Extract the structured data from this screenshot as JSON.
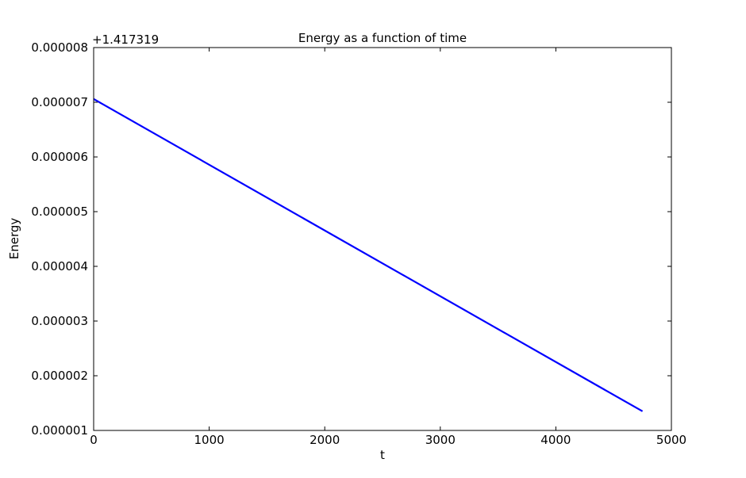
{
  "chart_data": {
    "type": "line",
    "title": "Energy as a function of time",
    "xlabel": "t",
    "ylabel": "Energy",
    "y_offset_label": "+1.417319",
    "xlim": [
      0,
      5000
    ],
    "ylim": [
      1e-06,
      8e-06
    ],
    "x_ticks": [
      0,
      1000,
      2000,
      3000,
      4000,
      5000
    ],
    "x_tick_labels": [
      "0",
      "1000",
      "2000",
      "3000",
      "4000",
      "5000"
    ],
    "y_ticks": [
      1e-06,
      2e-06,
      3e-06,
      4e-06,
      5e-06,
      6e-06,
      7e-06,
      8e-06
    ],
    "y_tick_labels": [
      "0.000001",
      "0.000002",
      "0.000003",
      "0.000004",
      "0.000005",
      "0.000006",
      "0.000007",
      "0.000008"
    ],
    "grid": false,
    "series": [
      {
        "color": "#0000ff",
        "x": [
          0,
          4750
        ],
        "y": [
          7.06e-06,
          1.35e-06
        ]
      }
    ]
  }
}
